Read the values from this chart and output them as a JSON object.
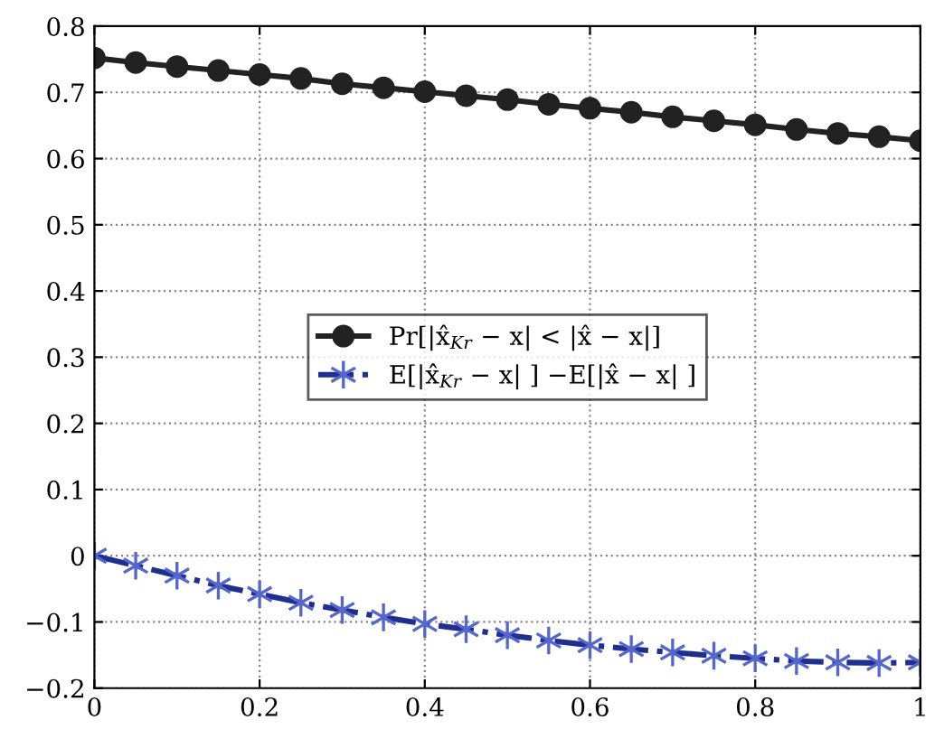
{
  "chart_data": {
    "type": "line",
    "x": [
      0,
      0.05,
      0.1,
      0.15,
      0.2,
      0.25,
      0.3,
      0.35,
      0.4,
      0.45,
      0.5,
      0.55,
      0.6,
      0.65,
      0.7,
      0.75,
      0.8,
      0.85,
      0.9,
      0.95,
      1
    ],
    "series": [
      {
        "name": "Pr[|x̂$_{Kr}$ − x| < |x̂ − x|]",
        "color": "#222222",
        "marker": "circle",
        "line_style": "solid",
        "values": [
          0.752,
          0.745,
          0.739,
          0.733,
          0.727,
          0.721,
          0.713,
          0.707,
          0.701,
          0.695,
          0.689,
          0.682,
          0.676,
          0.67,
          0.663,
          0.657,
          0.651,
          0.644,
          0.638,
          0.633,
          0.627
        ]
      },
      {
        "name": "E[|x̂$_{Kr}$ − x| ] −E[|x̂ − x| ]",
        "color": "#1f2f8f",
        "marker": "cross",
        "line_style": "dashdot",
        "values": [
          0,
          -0.015,
          -0.03,
          -0.045,
          -0.058,
          -0.071,
          -0.082,
          -0.093,
          -0.103,
          -0.111,
          -0.12,
          -0.128,
          -0.135,
          -0.141,
          -0.146,
          -0.151,
          -0.155,
          -0.159,
          -0.161,
          -0.162,
          -0.161
        ]
      }
    ],
    "xlim": [
      0,
      1
    ],
    "xticks": [
      0,
      0.2,
      0.4,
      0.6,
      0.8,
      1
    ],
    "ylim": [
      -0.2,
      0.8
    ],
    "yticks": [
      {
        "value": -0.2,
        "label": "−0.2"
      },
      {
        "value": -0.1,
        "label": "−0.1"
      },
      0,
      0.1,
      0.2,
      0.3,
      0.4,
      0.5,
      0.6,
      0.7,
      0.8
    ],
    "grid": true,
    "legend": "center"
  }
}
